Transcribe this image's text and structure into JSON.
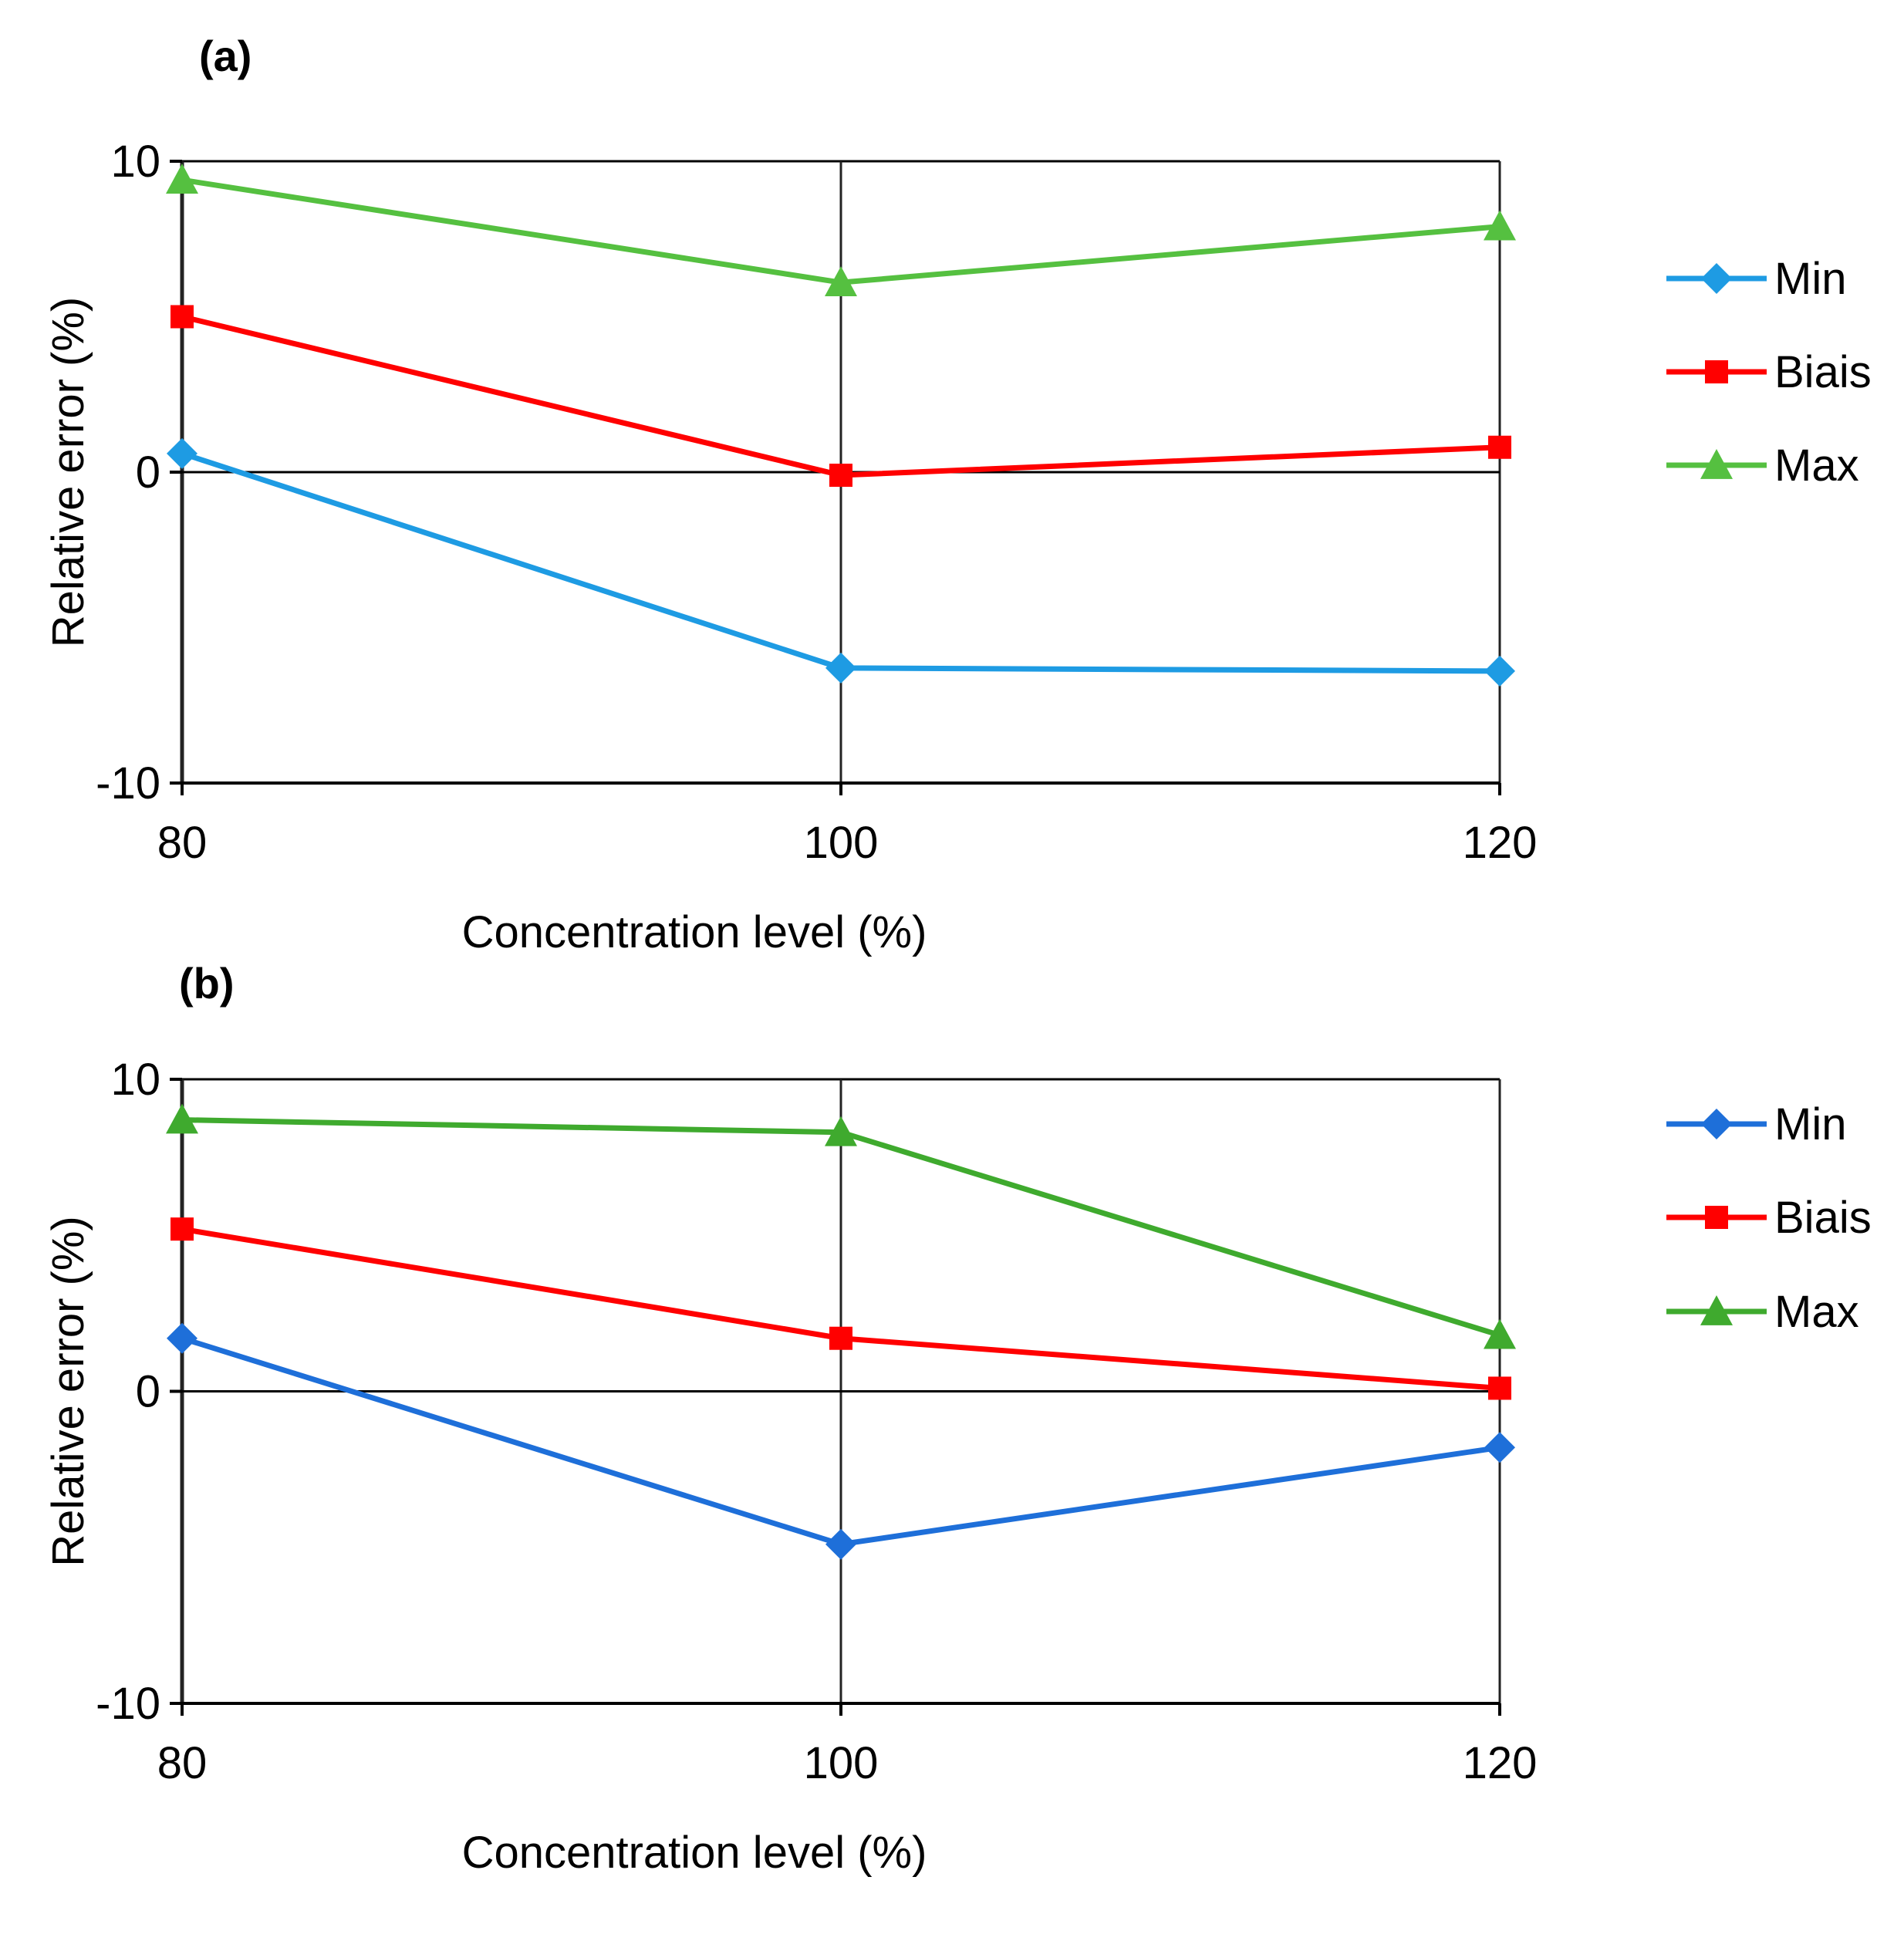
{
  "chart_data": [
    {
      "panel": "(a)",
      "type": "line",
      "x": [
        80,
        100,
        120
      ],
      "xticks": [
        "80",
        "100",
        "120"
      ],
      "yticks": [
        "-10",
        "0",
        "10"
      ],
      "xlabel": "Concentration level (%)",
      "ylabel": "Relative error (%)",
      "xlim": [
        80,
        120
      ],
      "ylim": [
        -10,
        10
      ],
      "grid": "vertical lines at each x tick; horizontal line at 0",
      "legend_position": "right",
      "series": [
        {
          "name": "Min",
          "values": [
            0.6,
            -6.3,
            -6.4
          ],
          "color": "#1E9BE3",
          "marker": "diamond"
        },
        {
          "name": "Biais",
          "values": [
            5.0,
            -0.1,
            0.8
          ],
          "color": "#FF0000",
          "marker": "square"
        },
        {
          "name": "Max",
          "values": [
            9.4,
            6.1,
            7.9
          ],
          "color": "#55C040",
          "marker": "triangle"
        }
      ]
    },
    {
      "panel": "(b)",
      "type": "line",
      "x": [
        80,
        100,
        120
      ],
      "xticks": [
        "80",
        "100",
        "120"
      ],
      "yticks": [
        "-10",
        "0",
        "10"
      ],
      "xlabel": "Concentration level (%)",
      "ylabel": "Relative error (%)",
      "xlim": [
        80,
        120
      ],
      "ylim": [
        -10,
        10
      ],
      "grid": "vertical lines at each x tick; horizontal line at 0",
      "legend_position": "right",
      "series": [
        {
          "name": "Min",
          "values": [
            1.7,
            -4.9,
            -1.8
          ],
          "color": "#1E6FD9",
          "marker": "diamond"
        },
        {
          "name": "Biais",
          "values": [
            5.2,
            1.7,
            0.1
          ],
          "color": "#FF0000",
          "marker": "square"
        },
        {
          "name": "Max",
          "values": [
            8.7,
            8.3,
            1.8
          ],
          "color": "#3FAA2E",
          "marker": "triangle"
        }
      ]
    }
  ]
}
